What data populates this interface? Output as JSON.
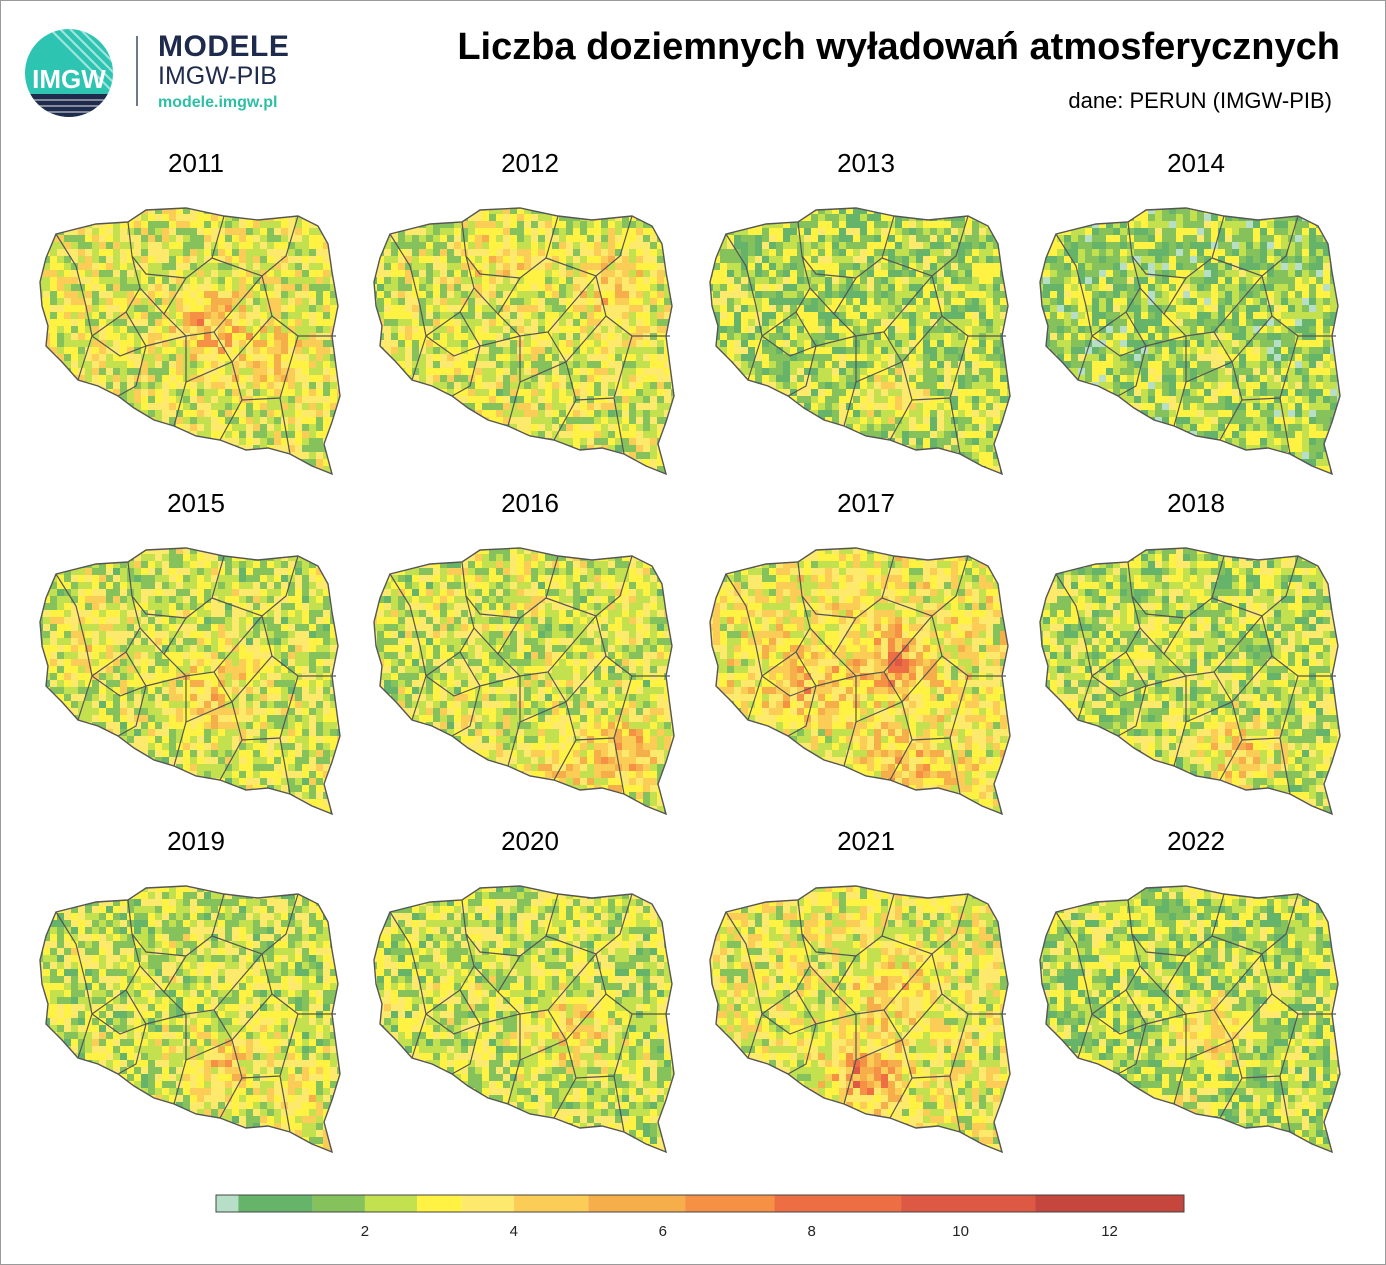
{
  "header": {
    "logo_text": "IMGW",
    "brand_line1": "MODELE",
    "brand_line2": "IMGW-PIB",
    "brand_url": "modele.imgw.pl",
    "title": "Liczba doziemnych wyładowań atmosferycznych",
    "subtitle": "dane: PERUN (IMGW-PIB)"
  },
  "maps": [
    {
      "year": "2011",
      "mean": 0.48,
      "hotspots": [
        [
          0.55,
          0.45,
          0.35
        ],
        [
          0.75,
          0.55,
          0.25
        ]
      ]
    },
    {
      "year": "2012",
      "mean": 0.46,
      "hotspots": [
        [
          0.78,
          0.35,
          0.3
        ],
        [
          0.4,
          0.25,
          0.2
        ]
      ]
    },
    {
      "year": "2013",
      "mean": 0.34,
      "hotspots": [
        [
          0.6,
          0.7,
          0.25
        ]
      ]
    },
    {
      "year": "2014",
      "mean": 0.3,
      "hotspots": [
        [
          0.55,
          0.6,
          0.15
        ]
      ]
    },
    {
      "year": "2015",
      "mean": 0.44,
      "hotspots": [
        [
          0.55,
          0.55,
          0.35
        ],
        [
          0.2,
          0.4,
          0.15
        ]
      ]
    },
    {
      "year": "2016",
      "mean": 0.45,
      "hotspots": [
        [
          0.8,
          0.75,
          0.4
        ],
        [
          0.55,
          0.85,
          0.25
        ]
      ]
    },
    {
      "year": "2017",
      "mean": 0.55,
      "hotspots": [
        [
          0.6,
          0.45,
          0.45
        ],
        [
          0.3,
          0.5,
          0.3
        ],
        [
          0.65,
          0.8,
          0.3
        ]
      ]
    },
    {
      "year": "2018",
      "mean": 0.4,
      "hotspots": [
        [
          0.65,
          0.75,
          0.35
        ]
      ]
    },
    {
      "year": "2019",
      "mean": 0.42,
      "hotspots": [
        [
          0.6,
          0.65,
          0.3
        ],
        [
          0.85,
          0.8,
          0.2
        ]
      ]
    },
    {
      "year": "2020",
      "mean": 0.42,
      "hotspots": [
        [
          0.65,
          0.55,
          0.3
        ]
      ]
    },
    {
      "year": "2021",
      "mean": 0.52,
      "hotspots": [
        [
          0.5,
          0.7,
          0.45
        ],
        [
          0.6,
          0.4,
          0.25
        ]
      ]
    },
    {
      "year": "2022",
      "mean": 0.36,
      "hotspots": [
        [
          0.55,
          0.55,
          0.3
        ],
        [
          0.45,
          0.85,
          0.2
        ]
      ]
    }
  ],
  "legend": {
    "colors": [
      "#b7dfc8",
      "#66b36a",
      "#86c25b",
      "#c3e04f",
      "#fff243",
      "#fde96b",
      "#fbcd57",
      "#f6ae4b",
      "#f59045",
      "#ee6e44",
      "#de5944",
      "#c5463d",
      "#a53d3f"
    ],
    "ticks": [
      "2",
      "4",
      "6",
      "8",
      "10",
      "12"
    ],
    "tick_values": [
      2,
      4,
      6,
      8,
      10,
      12
    ],
    "bounds": [
      0,
      0.3,
      1.3,
      2,
      2.7,
      3.3,
      4,
      5,
      6.3,
      7.5,
      9.2,
      11,
      13
    ]
  }
}
